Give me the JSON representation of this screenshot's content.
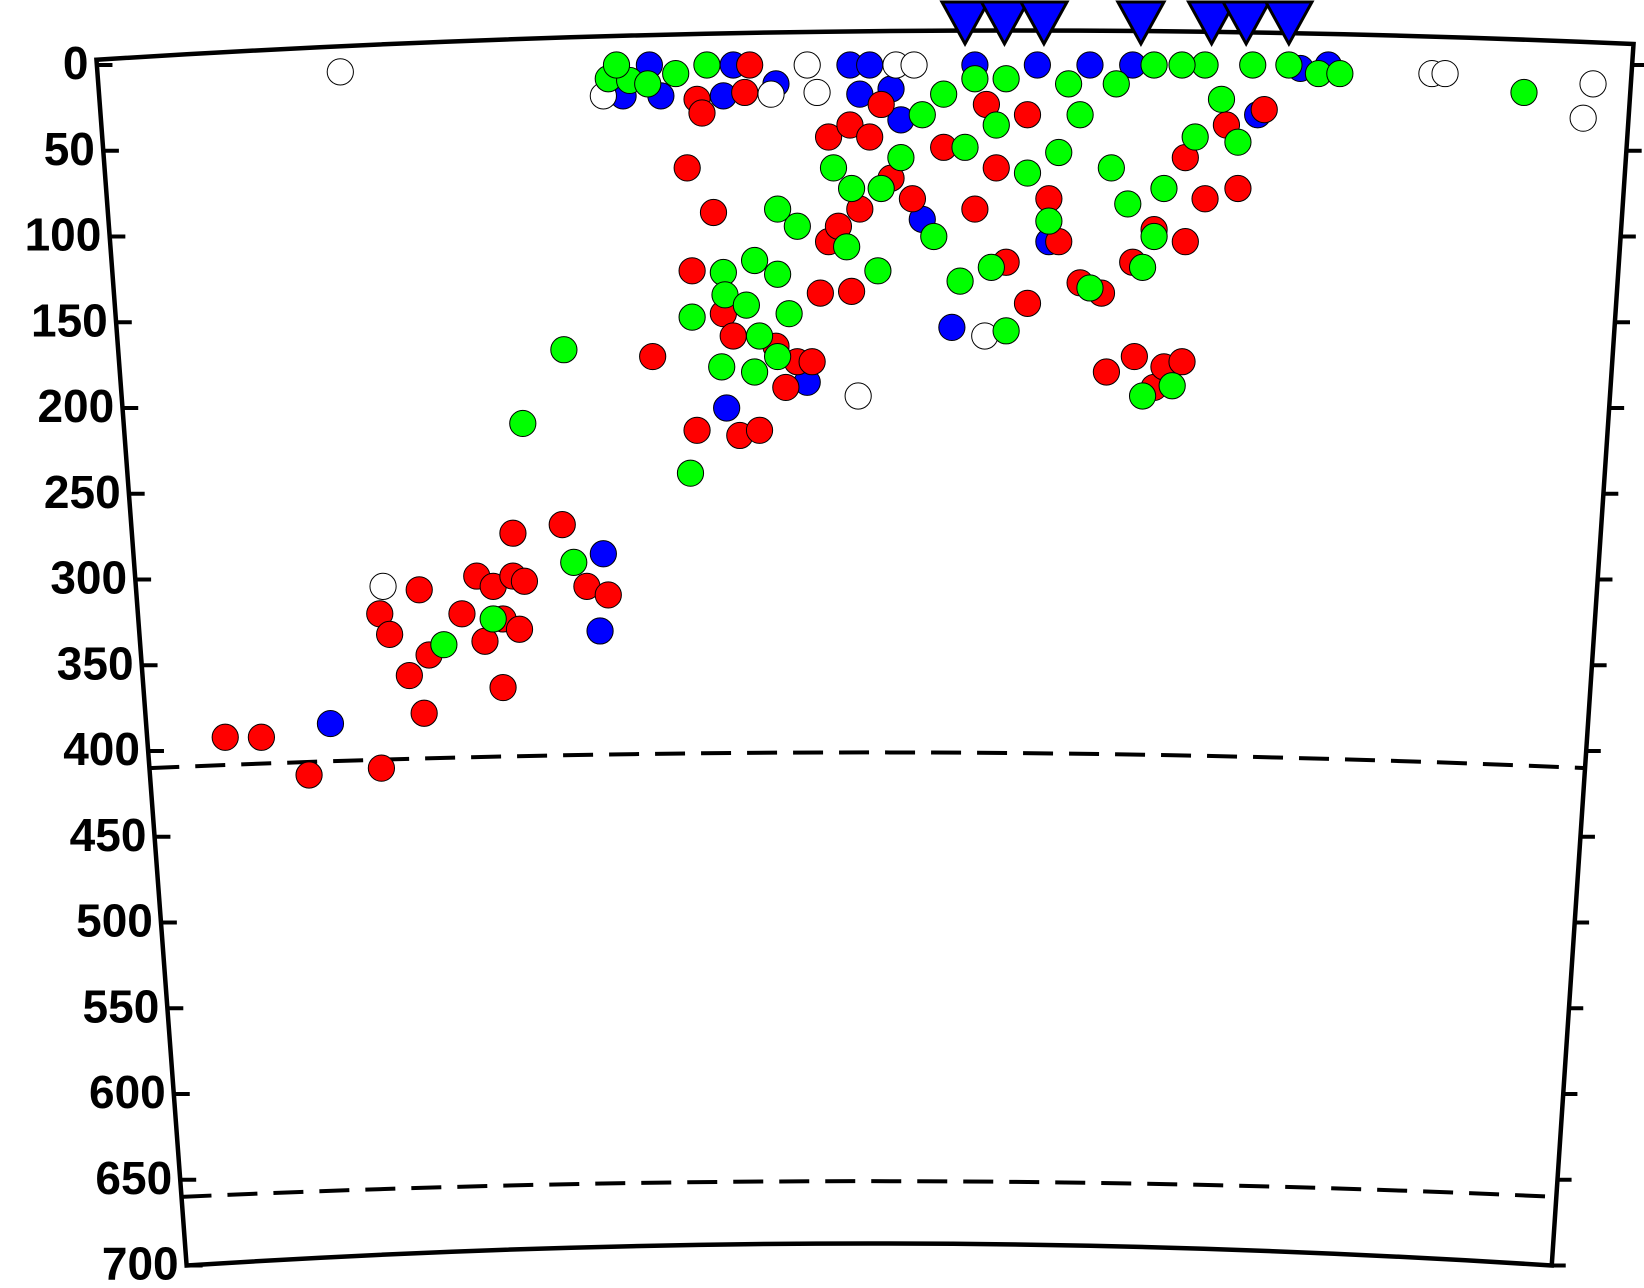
{
  "chart_data": {
    "type": "scatter",
    "xlim": [
      0,
      100
    ],
    "ylim": [
      0,
      700
    ],
    "y_inverted": true,
    "yticks": [
      0,
      50,
      100,
      150,
      200,
      250,
      300,
      350,
      400,
      450,
      500,
      550,
      600,
      650,
      700
    ],
    "reference_lines": [
      410,
      660
    ],
    "stations": {
      "color": "#0000ff",
      "marker": "triangle",
      "x": [
        58.7,
        61.1,
        63.5,
        69.4,
        73.7,
        75.8,
        78.4
      ]
    },
    "series": [
      {
        "color": "#0000ff",
        "x": [
          20.1,
          36.5,
          36.7,
          44.2,
          57.9,
          49.1,
          47.2,
          52.3,
          54.2,
          54.8,
          37.9,
          40.2,
          44.0,
          80.8,
          79.1,
          76.5,
          39.5,
          44.6,
          51.7,
          52.9,
          59.3,
          63.1,
          66.3,
          68.9,
          63.8,
          56.1
        ],
        "y": [
          384,
          330,
          285,
          200,
          153,
          185,
          11,
          17,
          14,
          32,
          18,
          18,
          18,
          0,
          2,
          29,
          0,
          0,
          0,
          0,
          0,
          0,
          0,
          0,
          103,
          90
        ]
      },
      {
        "color": "#ffffff",
        "x": [
          20.7,
          23.3,
          36.7,
          46.9,
          49.7,
          52.2,
          59.9,
          49.1,
          54.5,
          55.6,
          87.1,
          87.9,
          96.9,
          96.3
        ],
        "y": [
          4,
          304,
          18,
          17,
          16,
          193,
          158,
          0,
          0,
          0,
          5,
          5,
          11,
          31
        ]
      },
      {
        "color": "#ff0000",
        "x": [
          13.7,
          15.9,
          18.8,
          23.2,
          25.8,
          23.1,
          23.7,
          25.5,
          24.9,
          26.1,
          28.1,
          29.0,
          30.0,
          30.6,
          31.2,
          31.9,
          31.2,
          30.6,
          29.5,
          31.6,
          34.2,
          35.7,
          37.0,
          39.7,
          41.8,
          43.4,
          42.1,
          42.4,
          45.0,
          46.2,
          44.0,
          44.6,
          47.2,
          48.5,
          47.8,
          49.4,
          49.9,
          51.8,
          50.4,
          51.7,
          52.9,
          53.6,
          54.2,
          55.5,
          50.4,
          51.0,
          52.3,
          57.4,
          59.3,
          61.2,
          62.5,
          60.6,
          63.8,
          64.4,
          65.7,
          67.0,
          67.3,
          69.0,
          70.2,
          70.8,
          71.9,
          68.9,
          70.2,
          72.1,
          73.3,
          75.3,
          72.1,
          74.6,
          76.9,
          60.0,
          62.5,
          42.4,
          42.7,
          45.3,
          45.6
        ],
        "y": [
          392,
          392,
          414,
          410,
          378,
          320,
          332,
          306,
          356,
          344,
          320,
          298,
          304,
          323,
          298,
          301,
          273,
          363,
          336,
          329,
          268,
          304,
          309,
          170,
          60,
          86,
          120,
          213,
          216,
          213,
          145,
          158,
          164,
          173,
          188,
          173,
          133,
          132,
          42,
          35,
          42,
          23,
          66,
          78,
          103,
          94,
          84,
          48,
          84,
          115,
          139,
          60,
          78,
          103,
          127,
          133,
          179,
          170,
          188,
          176,
          173,
          115,
          96,
          103,
          78,
          72,
          54,
          35,
          26,
          23,
          29,
          20,
          28,
          16,
          0
        ]
      },
      {
        "color": "#00ff00",
        "x": [
          92.7,
          80.2,
          81.5,
          78.4,
          76.2,
          73.3,
          71.9,
          70.2,
          67.9,
          65.0,
          61.2,
          59.3,
          57.4,
          56.1,
          54.8,
          53.6,
          51.8,
          50.7,
          53.4,
          51.5,
          48.5,
          47.3,
          45.9,
          47.3,
          44.0,
          44.1,
          45.4,
          48.0,
          42.1,
          43.9,
          46.2,
          47.3,
          45.9,
          42.0,
          34.3,
          31.8,
          34.9,
          30.0,
          27.0,
          69.5,
          71.3,
          66.3,
          69.5,
          70.2,
          70.8,
          72.7,
          75.3,
          74.3,
          61.2,
          60.3,
          58.4,
          56.8,
          58.7,
          60.6,
          62.5,
          64.4,
          65.7,
          67.6,
          68.6,
          63.8,
          37.0,
          38.3,
          39.4,
          41.1,
          43.0,
          37.5
        ],
        "y": [
          16,
          5,
          5,
          0,
          0,
          0,
          0,
          0,
          11,
          11,
          8,
          8,
          17,
          29,
          54,
          72,
          72,
          60,
          120,
          106,
          94,
          84,
          114,
          122,
          121,
          134,
          140,
          145,
          147,
          176,
          158,
          170,
          179,
          238,
          166,
          209,
          290,
          323,
          338,
          193,
          187,
          130,
          118,
          100,
          72,
          42,
          45,
          20,
          155,
          118,
          126,
          100,
          48,
          35,
          63,
          51,
          29,
          60,
          81,
          91,
          8,
          9,
          11,
          5,
          0,
          0
        ]
      }
    ]
  }
}
